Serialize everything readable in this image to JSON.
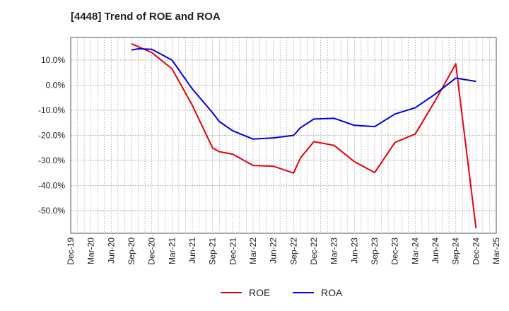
{
  "chart_data": {
    "type": "line",
    "title": "[4448]  Trend of ROE and ROA",
    "xlabel": "",
    "ylabel": "",
    "x_ticks": [
      "Dec-19",
      "Mar-20",
      "Jun-20",
      "Sep-20",
      "Dec-20",
      "Mar-21",
      "Jun-21",
      "Sep-21",
      "Dec-21",
      "Mar-22",
      "Jun-22",
      "Sep-22",
      "Dec-22",
      "Mar-23",
      "Jun-23",
      "Sep-23",
      "Dec-23",
      "Mar-24",
      "Jun-24",
      "Sep-24",
      "Dec-24",
      "Mar-25"
    ],
    "y_ticks": [
      10.0,
      0.0,
      -10.0,
      -20.0,
      -30.0,
      -40.0,
      -50.0
    ],
    "y_tick_labels": [
      "10.0%",
      "0.0%",
      "-10.0%",
      "-20.0%",
      "-30.0%",
      "-40.0%",
      "-50.0%"
    ],
    "ylim": [
      -59,
      19
    ],
    "grid": true,
    "legend_position": "bottom-center",
    "series": [
      {
        "name": "ROE",
        "color": "#e8000b",
        "points": [
          [
            "Sep-20",
            16.5
          ],
          [
            "Dec-20",
            13.0
          ],
          [
            "Mar-21",
            6.5
          ],
          [
            "Jun-21",
            -8.0
          ],
          [
            "Sep-21",
            -25.0
          ],
          [
            "Oct-21",
            -26.5
          ],
          [
            "Dec-21",
            -27.5
          ],
          [
            "Mar-22",
            -32.0
          ],
          [
            "Jun-22",
            -32.3
          ],
          [
            "Sep-22",
            -35.0
          ],
          [
            "Oct-22",
            -29.0
          ],
          [
            "Dec-22",
            -22.5
          ],
          [
            "Mar-23",
            -24.0
          ],
          [
            "Jun-23",
            -30.5
          ],
          [
            "Sep-23",
            -34.8
          ],
          [
            "Dec-23",
            -22.8
          ],
          [
            "Mar-24",
            -19.5
          ],
          [
            "Jun-24",
            -6.0
          ],
          [
            "Sep-24",
            8.5
          ],
          [
            "Dec-24",
            -57.0
          ]
        ]
      },
      {
        "name": "ROA",
        "color": "#0000e6",
        "points": [
          [
            "Sep-20",
            14.0
          ],
          [
            "Oct-20",
            14.5
          ],
          [
            "Dec-20",
            14.3
          ],
          [
            "Mar-21",
            10.0
          ],
          [
            "Jun-21",
            -1.5
          ],
          [
            "Sep-21",
            -11.0
          ],
          [
            "Oct-21",
            -14.5
          ],
          [
            "Dec-21",
            -18.2
          ],
          [
            "Mar-22",
            -21.5
          ],
          [
            "Jun-22",
            -21.0
          ],
          [
            "Sep-22",
            -20.0
          ],
          [
            "Oct-22",
            -17.0
          ],
          [
            "Dec-22",
            -13.5
          ],
          [
            "Mar-23",
            -13.2
          ],
          [
            "Jun-23",
            -16.0
          ],
          [
            "Sep-23",
            -16.5
          ],
          [
            "Dec-23",
            -11.5
          ],
          [
            "Mar-24",
            -9.0
          ],
          [
            "Jun-24",
            -3.5
          ],
          [
            "Sep-24",
            2.8
          ],
          [
            "Dec-24",
            1.5
          ]
        ]
      }
    ]
  }
}
